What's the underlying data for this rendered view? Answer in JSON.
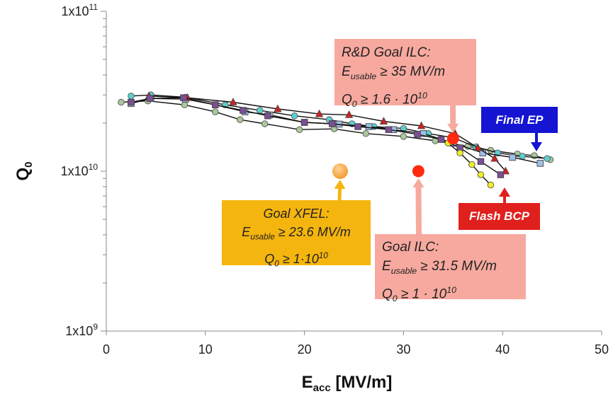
{
  "chart_data": {
    "type": "scatter",
    "xlabel": "E",
    "xlabel_sub": "acc",
    "xlabel_unit": "[MV/m]",
    "ylabel": "Q",
    "ylabel_sub": "0",
    "x_scale": "linear",
    "y_scale": "log",
    "xlim": [
      0,
      50
    ],
    "ylim": [
      1000000000.0,
      100000000000.0
    ],
    "x_ticks": [
      0,
      10,
      20,
      30,
      40,
      50
    ],
    "y_ticks": [
      {
        "value": 1000000000.0,
        "mantissa": "1x10",
        "exp": "9"
      },
      {
        "value": 10000000000.0,
        "mantissa": "1x10",
        "exp": "10"
      },
      {
        "value": 100000000000.0,
        "mantissa": "1x10",
        "exp": "11"
      }
    ],
    "grid": false,
    "series": [
      {
        "color": "#a9c89b",
        "marker": "circle",
        "points": [
          [
            1.5,
            27000000000.0
          ],
          [
            4.2,
            27500000000.0
          ],
          [
            7.9,
            26000000000.0
          ],
          [
            11,
            23500000000.0
          ],
          [
            13.5,
            21000000000.0
          ],
          [
            16,
            19800000000.0
          ],
          [
            19.5,
            18200000000.0
          ],
          [
            23,
            18400000000.0
          ],
          [
            26.2,
            17200000000.0
          ],
          [
            30,
            16500000000.0
          ],
          [
            33.2,
            15500000000.0
          ],
          [
            36.5,
            14300000000.0
          ],
          [
            38.8,
            13500000000.0
          ],
          [
            41.5,
            12800000000.0
          ],
          [
            43.2,
            12500000000.0
          ],
          [
            44.8,
            11800000000.0
          ]
        ]
      },
      {
        "color": "#5ccfcf",
        "marker": "circle",
        "points": [
          [
            2.5,
            29500000000.0
          ],
          [
            4.5,
            30000000000.0
          ],
          [
            8,
            29000000000.0
          ],
          [
            12,
            26000000000.0
          ],
          [
            15.5,
            24000000000.0
          ],
          [
            19,
            22200000000.0
          ],
          [
            22.5,
            21000000000.0
          ],
          [
            24.8,
            19800000000.0
          ],
          [
            27,
            19000000000.0
          ],
          [
            30,
            18500000000.0
          ],
          [
            32.5,
            17200000000.0
          ],
          [
            35,
            16200000000.0
          ],
          [
            37.3,
            14200000000.0
          ],
          [
            39.5,
            13000000000.0
          ],
          [
            42,
            12400000000.0
          ],
          [
            44.5,
            12000000000.0
          ]
        ]
      },
      {
        "color": "#9fc0e8",
        "marker": "square",
        "points": [
          [
            2.5,
            26500000000.0
          ],
          [
            4.5,
            28500000000.0
          ],
          [
            8,
            28200000000.0
          ],
          [
            11,
            26000000000.0
          ],
          [
            14,
            23500000000.0
          ],
          [
            16.5,
            22500000000.0
          ],
          [
            20,
            20200000000.0
          ],
          [
            23.5,
            19700000000.0
          ],
          [
            26.5,
            19000000000.0
          ],
          [
            29,
            18200000000.0
          ],
          [
            32,
            17200000000.0
          ],
          [
            35,
            15000000000.0
          ],
          [
            38,
            13000000000.0
          ],
          [
            41,
            12200000000.0
          ],
          [
            43.8,
            11200000000.0
          ]
        ]
      },
      {
        "color": "#cc2222",
        "marker": "triangle",
        "points": [
          [
            4.3,
            29500000000.0
          ],
          [
            8.2,
            28800000000.0
          ],
          [
            12.8,
            27000000000.0
          ],
          [
            17.3,
            24500000000.0
          ],
          [
            21.5,
            22800000000.0
          ],
          [
            24.5,
            22500000000.0
          ],
          [
            28,
            20500000000.0
          ],
          [
            31.8,
            19200000000.0
          ],
          [
            35.2,
            17200000000.0
          ],
          [
            37.5,
            14000000000.0
          ],
          [
            39.2,
            12000000000.0
          ],
          [
            40.3,
            10000000000.0
          ]
        ]
      },
      {
        "color": "#7b4f93",
        "marker": "square",
        "points": [
          [
            2.5,
            27000000000.0
          ],
          [
            4.4,
            28500000000.0
          ],
          [
            7.8,
            28800000000.0
          ],
          [
            11,
            26000000000.0
          ],
          [
            13.8,
            24000000000.0
          ],
          [
            16.3,
            22200000000.0
          ],
          [
            20,
            20200000000.0
          ],
          [
            22.8,
            19800000000.0
          ],
          [
            25.4,
            19000000000.0
          ],
          [
            28.5,
            18200000000.0
          ],
          [
            31.4,
            17000000000.0
          ],
          [
            33.8,
            15800000000.0
          ],
          [
            35.7,
            14000000000.0
          ],
          [
            37.8,
            11500000000.0
          ],
          [
            39.8,
            9500000000.0
          ]
        ]
      },
      {
        "color": "#eeee22",
        "marker": "circle",
        "points": [
          [
            34.5,
            15000000000.0
          ],
          [
            35.7,
            13000000000.0
          ],
          [
            36.9,
            11000000000.0
          ],
          [
            37.8,
            9500000000.0
          ],
          [
            38.8,
            8200000000.0
          ]
        ]
      }
    ],
    "highlights": [
      {
        "name": "rd-goal-ilc",
        "x": 35,
        "y": 16000000000.0,
        "color": "#ff2a10"
      },
      {
        "name": "goal-ilc",
        "x": 31.5,
        "y": 10000000000.0,
        "color": "#ff2a10"
      },
      {
        "name": "goal-xfel",
        "x": 23.6,
        "y": 10000000000.0,
        "color": "#f39a2e"
      }
    ],
    "annotations": {
      "rd_goal": {
        "title": "R&D Goal ILC:",
        "eusable_label": "E",
        "eusable_sub": "usable",
        "eusable_value": "≥ 35 MV/m",
        "q0_label": "Q",
        "q0_sub": "0",
        "q0_prefix": "≥ 1.6 · 10",
        "q0_exp": "10"
      },
      "goal_ilc": {
        "title": "Goal ILC:",
        "eusable_label": "E",
        "eusable_sub": "usable",
        "eusable_value": "≥ 31.5 MV/m",
        "q0_label": "Q",
        "q0_sub": "0",
        "q0_prefix": "≥ 1 · 10",
        "q0_exp": "10"
      },
      "goal_xfel": {
        "title": "Goal XFEL:",
        "eusable_label": "E",
        "eusable_sub": "usable",
        "eusable_value": "≥ 23.6 MV/m",
        "q0_label": "Q",
        "q0_sub": "0",
        "q0_prefix": "≥ 1·10",
        "q0_exp": "10"
      },
      "final_ep": {
        "label": "Final EP",
        "color": "#1414d2"
      },
      "flash_bcp": {
        "label": "Flash BCP",
        "color": "#e0201d"
      }
    }
  }
}
